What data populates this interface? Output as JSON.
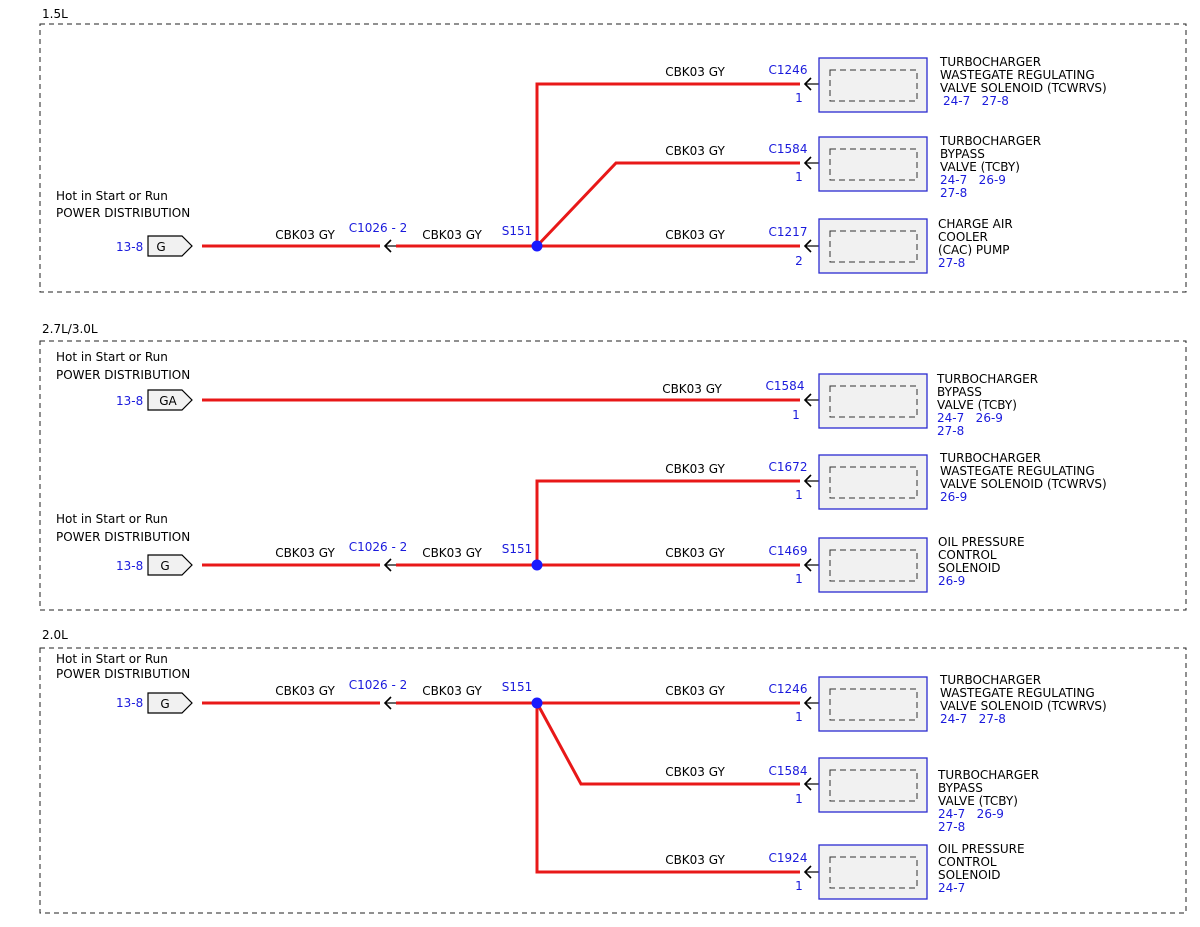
{
  "sections": [
    {
      "label": "1.5L",
      "source": {
        "line1": "Hot in Start or Run",
        "line2": "POWER DISTRIBUTION",
        "ref": "13-8",
        "connector": "G"
      },
      "inline": {
        "wire_left": "CBK03  GY",
        "connector": "C1026 - 2",
        "wire_right": "CBK03  GY"
      },
      "splice": "S151",
      "branches": [
        {
          "wire": "CBK03  GY",
          "connector": "C1246",
          "pin": "1",
          "name_lines": [
            "TURBOCHARGER",
            "WASTEGATE REGULATING",
            "VALVE SOLENOID (TCWRVS)"
          ],
          "refs": [
            "24-7   27-8"
          ]
        },
        {
          "wire": "CBK03  GY",
          "connector": "C1584",
          "pin": "1",
          "name_lines": [
            "TURBOCHARGER",
            "BYPASS",
            "VALVE (TCBY)"
          ],
          "refs": [
            "24-7   26-9",
            "27-8"
          ]
        },
        {
          "wire": "CBK03  GY",
          "connector": "C1217",
          "pin": "2",
          "name_lines": [
            "CHARGE AIR",
            "COOLER",
            "(CAC) PUMP"
          ],
          "refs": [
            "27-8"
          ]
        }
      ]
    },
    {
      "label": "2.7L/3.0L",
      "direct": {
        "source": {
          "line1": "Hot in Start or Run",
          "line2": "POWER DISTRIBUTION",
          "ref": "13-8",
          "connector": "GA"
        },
        "wire": "CBK03  GY",
        "connector": "C1584",
        "pin": "1",
        "name_lines": [
          "TURBOCHARGER",
          "BYPASS",
          "VALVE (TCBY)"
        ],
        "refs": [
          "24-7   26-9",
          "27-8"
        ]
      },
      "source": {
        "line1": "Hot in Start or Run",
        "line2": "POWER DISTRIBUTION",
        "ref": "13-8",
        "connector": "G"
      },
      "inline": {
        "wire_left": "CBK03  GY",
        "connector": "C1026 - 2",
        "wire_right": "CBK03  GY"
      },
      "splice": "S151",
      "branches": [
        {
          "wire": "CBK03  GY",
          "connector": "C1672",
          "pin": "1",
          "name_lines": [
            "TURBOCHARGER",
            "WASTEGATE REGULATING",
            "VALVE SOLENOID (TCWRVS)"
          ],
          "refs": [
            "26-9"
          ]
        },
        {
          "wire": "CBK03  GY",
          "connector": "C1469",
          "pin": "1",
          "name_lines": [
            "OIL PRESSURE",
            "CONTROL",
            "SOLENOID"
          ],
          "refs": [
            "26-9"
          ]
        }
      ]
    },
    {
      "label": "2.0L",
      "source": {
        "line1": "Hot in Start or Run",
        "line2": "POWER DISTRIBUTION",
        "ref": "13-8",
        "connector": "G"
      },
      "inline": {
        "wire_left": "CBK03  GY",
        "connector": "C1026 - 2",
        "wire_right": "CBK03  GY"
      },
      "splice": "S151",
      "branches": [
        {
          "wire": "CBK03  GY",
          "connector": "C1246",
          "pin": "1",
          "name_lines": [
            "TURBOCHARGER",
            "WASTEGATE REGULATING",
            "VALVE SOLENOID (TCWRVS)"
          ],
          "refs": [
            "24-7   27-8"
          ]
        },
        {
          "wire": "CBK03  GY",
          "connector": "C1584",
          "pin": "1",
          "name_lines": [
            "TURBOCHARGER",
            "BYPASS",
            "VALVE (TCBY)"
          ],
          "refs": [
            "24-7   26-9",
            "27-8"
          ]
        },
        {
          "wire": "CBK03  GY",
          "connector": "C1924",
          "pin": "1",
          "name_lines": [
            "OIL PRESSURE",
            "CONTROL",
            "SOLENOID"
          ],
          "refs": [
            "24-7"
          ]
        }
      ]
    }
  ]
}
